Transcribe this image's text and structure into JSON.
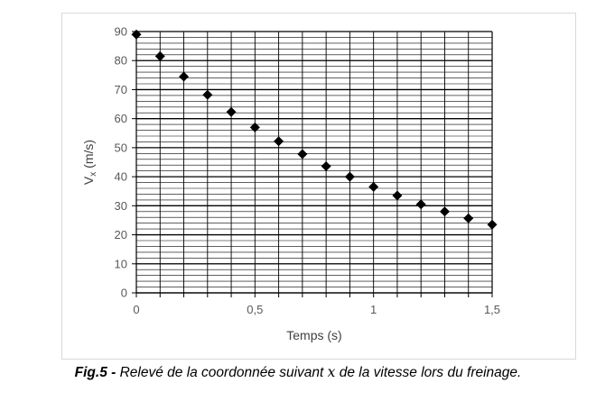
{
  "chart_data": {
    "type": "scatter",
    "title": "",
    "xlabel": "Temps (s)",
    "ylabel_main": "V",
    "ylabel_sub": "x",
    "ylabel_unit": " (m/s)",
    "xlim": [
      0,
      1.5
    ],
    "ylim": [
      0,
      90
    ],
    "x_ticks": [
      0,
      0.5,
      1,
      1.5
    ],
    "x_tick_labels": [
      "0",
      "0,5",
      "1",
      "1,5"
    ],
    "y_ticks": [
      0,
      10,
      20,
      30,
      40,
      50,
      60,
      70,
      80,
      90
    ],
    "y_tick_labels": [
      "0",
      "10",
      "20",
      "30",
      "40",
      "50",
      "60",
      "70",
      "80",
      "90"
    ],
    "x_minor_step": 0.1,
    "y_minor_step": 2,
    "grid": true,
    "marker": "diamond",
    "marker_color": "#000000",
    "points": {
      "x": [
        0,
        0.1,
        0.2,
        0.3,
        0.4,
        0.5,
        0.6,
        0.7,
        0.8,
        0.9,
        1.0,
        1.1,
        1.2,
        1.3,
        1.4,
        1.5
      ],
      "y": [
        89,
        81.5,
        74.5,
        68.2,
        62.3,
        57,
        52.2,
        47.8,
        43.6,
        40,
        36.5,
        33.5,
        30.5,
        28,
        25.7,
        23.5
      ]
    }
  },
  "caption": {
    "figure_number": "Fig.5 -",
    "text_before": " Relevé de la coordonnée suivant ",
    "variable": "x",
    "text_after": " de la vitesse lors du freinage."
  }
}
